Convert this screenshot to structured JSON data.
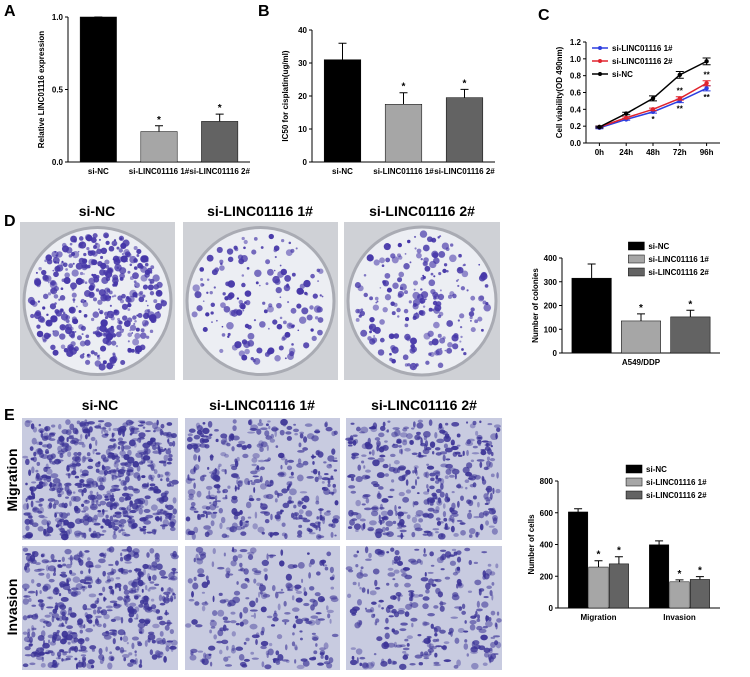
{
  "panel_labels": [
    "A",
    "B",
    "C",
    "D",
    "E"
  ],
  "image_captions": {
    "colony": [
      "si-NC",
      "si-LINC01116 1#",
      "si-LINC01116 2#"
    ],
    "transwell": [
      "si-NC",
      "si-LINC01116 1#",
      "si-LINC01116 2#"
    ],
    "transwell_rows": [
      "Migration",
      "Invasion"
    ]
  },
  "chart_data": [
    {
      "type": "bar",
      "ylabel": "Relative LINC01116 expression",
      "categories": [
        "si-NC",
        "si-LINC01116 1#",
        "si-LINC01116 2#"
      ],
      "values": [
        1,
        0.21,
        0.28
      ],
      "errors": [
        0,
        0.04,
        0.05
      ],
      "colors": [
        "#000000",
        "#a6a6a6",
        "#636363"
      ],
      "significance": [
        null,
        "*",
        "*"
      ],
      "ylim": [
        0,
        1
      ],
      "yticks": [
        {
          "value": 0,
          "label": "0.0"
        },
        0.5,
        {
          "value": 1,
          "label": "1.0"
        }
      ]
    },
    {
      "type": "bar",
      "ylabel": "IC50 for cisplatin(ug/ml)",
      "categories": [
        "si-NC",
        "si-LINC01116 1#",
        "si-LINC01116 2#"
      ],
      "values": [
        31,
        17.5,
        19.5
      ],
      "errors": [
        5,
        3.5,
        2.5
      ],
      "colors": [
        "#000000",
        "#a6a6a6",
        "#636363"
      ],
      "significance": [
        null,
        "*",
        "*"
      ],
      "ylim": [
        0,
        40
      ],
      "yticks": [
        0,
        10,
        20,
        30,
        40
      ]
    },
    {
      "type": "line",
      "ylabel": "Cell viability(OD 490nm)",
      "categories": [
        "0h",
        "24h",
        "48h",
        "72h",
        "96h"
      ],
      "series": [
        {
          "name": "si-LINC01116 1#",
          "color": "#2d3ee0",
          "values": [
            0.18,
            0.28,
            0.37,
            0.5,
            0.65
          ],
          "errors": [
            0.01,
            0.01,
            0.015,
            0.02,
            0.03
          ],
          "significance": [
            null,
            null,
            "*",
            "**",
            "**"
          ]
        },
        {
          "name": "si-LINC01116 2#",
          "color": "#e0232d",
          "values": [
            0.19,
            0.3,
            0.4,
            0.53,
            0.71
          ],
          "errors": [
            0.01,
            0.01,
            0.015,
            0.02,
            0.03
          ],
          "significance": [
            null,
            null,
            null,
            "**",
            "**"
          ]
        },
        {
          "name": "si-NC",
          "color": "#000000",
          "values": [
            0.19,
            0.35,
            0.53,
            0.81,
            0.97
          ],
          "errors": [
            0.01,
            0.015,
            0.03,
            0.04,
            0.04
          ],
          "significance": [
            null,
            null,
            null,
            null,
            null
          ]
        }
      ],
      "legend": "upper left",
      "ylim": [
        0,
        1.2
      ],
      "yticks": [
        {
          "value": 0,
          "label": "0.0"
        },
        0.2,
        0.4,
        0.6,
        0.8,
        {
          "value": 1,
          "label": "1.0"
        },
        1.2
      ]
    },
    {
      "type": "bar",
      "ylabel": "Number of colonies",
      "categories": [
        "A549/DDP"
      ],
      "series": [
        {
          "name": "si-NC",
          "color": "#000000",
          "values": [
            315
          ],
          "errors": [
            60
          ],
          "significance": [
            null
          ]
        },
        {
          "name": "si-LINC01116 1#",
          "color": "#a6a6a6",
          "values": [
            135
          ],
          "errors": [
            30
          ],
          "significance": [
            "*"
          ]
        },
        {
          "name": "si-LINC01116 2#",
          "color": "#636363",
          "values": [
            152
          ],
          "errors": [
            28
          ],
          "significance": [
            "*"
          ]
        }
      ],
      "legend": "upper right",
      "ylim": [
        0,
        400
      ],
      "yticks": [
        0,
        100,
        200,
        300,
        400
      ]
    },
    {
      "type": "bar",
      "ylabel": "Number of cells",
      "categories": [
        "Migration",
        "Invasion"
      ],
      "series": [
        {
          "name": "si-NC",
          "color": "#000000",
          "values": [
            605,
            398
          ],
          "errors": [
            20,
            25
          ],
          "significance": [
            null,
            null
          ]
        },
        {
          "name": "si-LINC01116 1#",
          "color": "#a6a6a6",
          "values": [
            258,
            165
          ],
          "errors": [
            40,
            12
          ],
          "significance": [
            "*",
            "*"
          ]
        },
        {
          "name": "si-LINC01116 2#",
          "color": "#636363",
          "values": [
            278,
            180
          ],
          "errors": [
            45,
            18
          ],
          "significance": [
            "*",
            "*"
          ]
        }
      ],
      "legend": "upper right",
      "ylim": [
        0,
        800
      ],
      "yticks": [
        0,
        200,
        400,
        600,
        800
      ]
    }
  ]
}
